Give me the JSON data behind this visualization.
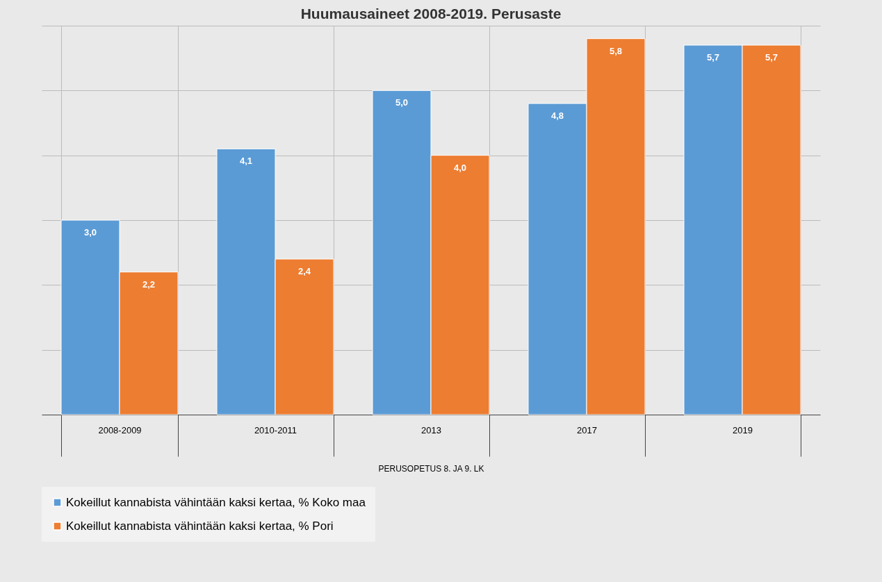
{
  "chart_data": {
    "type": "bar",
    "title": "Huumausaineet 2008-2019. Perusaste",
    "xlabel": "PERUSOPETUS 8. JA 9. LK",
    "categories": [
      "2008-2009",
      "2010-2011",
      "2013",
      "2017",
      "2019"
    ],
    "series": [
      {
        "name": "Kokeillut kannabista vähintään kaksi kertaa, % Koko maa",
        "color": "#5b9bd5",
        "values": [
          3.0,
          4.1,
          5.0,
          4.8,
          5.7
        ],
        "value_labels": [
          "3,0",
          "4,1",
          "5,0",
          "4,8",
          "5,7"
        ]
      },
      {
        "name": "Kokeillut kannabista vähintään kaksi kertaa, % Pori",
        "color": "#ed7d31",
        "values": [
          2.2,
          2.4,
          4.0,
          5.8,
          5.7
        ],
        "value_labels": [
          "2,2",
          "2,4",
          "4,0",
          "5,8",
          "5,7"
        ]
      }
    ],
    "tick_labels": "x",
    "grid": true,
    "legend": "bottom"
  }
}
